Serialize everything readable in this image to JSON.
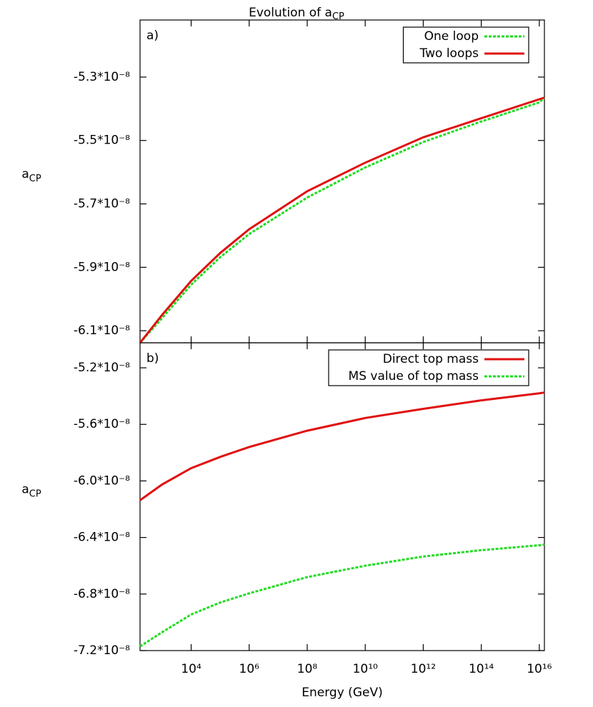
{
  "title": "Evolution of a",
  "title_subscript": "CP",
  "xlabel": "Energy (GeV)",
  "chart_data": [
    {
      "type": "line",
      "annotation": "a)",
      "ylabel": "a",
      "ylabel_subscript": "CP",
      "legend": "upper right",
      "xscale": "log",
      "x": [
        173,
        1000,
        10000,
        100000,
        1000000,
        100000000,
        10000000000,
        1000000000000,
        100000000000000,
        10000000000000000,
        15000000000000000
      ],
      "xlim": [
        173,
        15000000000000000
      ],
      "ylim": [
        -6.138e-08,
        -5.12e-08
      ],
      "yticks": [
        {
          "value": -5.3e-08,
          "label": "-5.3*10⁻⁸"
        },
        {
          "value": -5.5e-08,
          "label": "-5.5*10⁻⁸"
        },
        {
          "value": -5.7e-08,
          "label": "-5.7*10⁻⁸"
        },
        {
          "value": -5.9e-08,
          "label": "-5.9*10⁻⁸"
        },
        {
          "value": -6.1e-08,
          "label": "-6.1*10⁻⁸"
        }
      ],
      "series": [
        {
          "name": "One loop",
          "color": "#22dd22",
          "dashed": true,
          "values": [
            -6.138e-08,
            -6.06e-08,
            -5.955e-08,
            -5.868e-08,
            -5.795e-08,
            -5.68e-08,
            -5.585e-08,
            -5.505e-08,
            -5.44e-08,
            -5.38e-08,
            -5.365e-08
          ]
        },
        {
          "name": "Two loops",
          "color": "#e01010",
          "dashed": false,
          "values": [
            -6.138e-08,
            -6.05e-08,
            -5.943e-08,
            -5.855e-08,
            -5.78e-08,
            -5.66e-08,
            -5.57e-08,
            -5.49e-08,
            -5.43e-08,
            -5.37e-08,
            -5.365e-08
          ]
        }
      ]
    },
    {
      "type": "line",
      "annotation": "b)",
      "ylabel": "a",
      "ylabel_subscript": "CP",
      "legend": "upper right",
      "xscale": "log",
      "x": [
        173,
        1000,
        10000,
        100000,
        1000000,
        100000000,
        10000000000,
        1000000000000,
        100000000000000,
        10000000000000000,
        15000000000000000
      ],
      "xlim": [
        173,
        15000000000000000
      ],
      "xticks": [
        {
          "value": 10000,
          "label": "10⁴"
        },
        {
          "value": 1000000,
          "label": "10⁶"
        },
        {
          "value": 100000000,
          "label": "10⁸"
        },
        {
          "value": 10000000000,
          "label": "10¹⁰"
        },
        {
          "value": 1000000000000,
          "label": "10¹²"
        },
        {
          "value": 100000000000000,
          "label": "10¹⁴"
        },
        {
          "value": 10000000000000000,
          "label": "10¹⁶"
        }
      ],
      "ylim": [
        -7.2e-08,
        -5.023e-08
      ],
      "yticks": [
        {
          "value": -5.2e-08,
          "label": "-5.2*10⁻⁸"
        },
        {
          "value": -5.6e-08,
          "label": "-5.6*10⁻⁸"
        },
        {
          "value": -6e-08,
          "label": "-6.0*10⁻⁸"
        },
        {
          "value": -6.4e-08,
          "label": "-6.4*10⁻⁸"
        },
        {
          "value": -6.8e-08,
          "label": "-6.8*10⁻⁸"
        },
        {
          "value": -7.2e-08,
          "label": "-7.2*10⁻⁸"
        }
      ],
      "series": [
        {
          "name": "Direct top mass",
          "color": "#e01010",
          "dashed": false,
          "values": [
            -6.137e-08,
            -6.025e-08,
            -5.91e-08,
            -5.83e-08,
            -5.76e-08,
            -5.645e-08,
            -5.555e-08,
            -5.49e-08,
            -5.43e-08,
            -5.38e-08,
            -5.375e-08
          ]
        },
        {
          "name": "MS value of top mass",
          "color": "#22dd22",
          "dashed": true,
          "values": [
            -7.17e-08,
            -7.07e-08,
            -6.945e-08,
            -6.86e-08,
            -6.795e-08,
            -6.68e-08,
            -6.6e-08,
            -6.535e-08,
            -6.49e-08,
            -6.455e-08,
            -6.45e-08
          ]
        }
      ]
    }
  ]
}
